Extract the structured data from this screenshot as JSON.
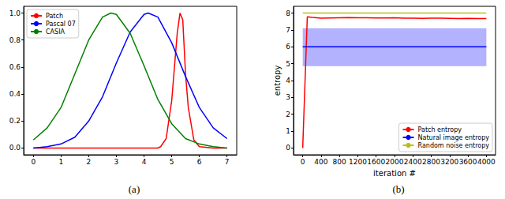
{
  "chart_data": [
    {
      "type": "line",
      "caption": "(a)",
      "xlim": [
        -0.35,
        7.35
      ],
      "xticks": [
        0,
        1,
        2,
        3,
        4,
        5,
        6,
        7
      ],
      "ylim": [
        -0.05,
        1.05
      ],
      "yticks": [
        {
          "value": 0,
          "label": "0.0"
        },
        {
          "value": 0.2,
          "label": "0.2"
        },
        {
          "value": 0.4,
          "label": "0.4"
        },
        {
          "value": 0.6,
          "label": "0.6"
        },
        {
          "value": 0.8,
          "label": "0.8"
        },
        {
          "value": 1,
          "label": "1.0"
        }
      ],
      "grid": false,
      "legend": "upper left",
      "series": [
        {
          "name": "Patch",
          "color": "#ff0000",
          "x": [
            0,
            1,
            2,
            3,
            4,
            4.5,
            4.6,
            4.8,
            5.0,
            5.1,
            5.2,
            5.3,
            5.4,
            5.5,
            5.6,
            5.8,
            6.0,
            6.5,
            7
          ],
          "values": [
            0,
            0,
            0,
            0,
            0,
            0,
            0.01,
            0.07,
            0.35,
            0.6,
            0.85,
            1.0,
            0.95,
            0.55,
            0.3,
            0.06,
            0.01,
            0,
            0
          ]
        },
        {
          "name": "Pascal 07",
          "color": "#0000ff",
          "x": [
            0,
            0.5,
            1,
            1.5,
            2,
            2.5,
            3,
            3.5,
            4,
            4.15,
            4.5,
            5,
            5.5,
            6,
            6.5,
            7
          ],
          "values": [
            0,
            0.01,
            0.03,
            0.08,
            0.2,
            0.38,
            0.63,
            0.86,
            0.99,
            1.0,
            0.97,
            0.78,
            0.53,
            0.3,
            0.15,
            0.07
          ]
        },
        {
          "name": "CASIA",
          "color": "#008000",
          "x": [
            0,
            0.5,
            1,
            1.5,
            2,
            2.5,
            2.8,
            3,
            3.5,
            4,
            4.5,
            5,
            5.5,
            6,
            6.5,
            7
          ],
          "values": [
            0.06,
            0.15,
            0.3,
            0.55,
            0.8,
            0.97,
            1.0,
            0.99,
            0.85,
            0.61,
            0.36,
            0.18,
            0.07,
            0.03,
            0.01,
            0
          ]
        }
      ]
    },
    {
      "type": "line",
      "caption": "(b)",
      "x_label": "iteration #",
      "y_label": "entropy",
      "xlim": [
        -200,
        4200
      ],
      "xticks": [
        0,
        400,
        800,
        1200,
        1600,
        2000,
        2400,
        2800,
        3200,
        3600,
        4000
      ],
      "ylim": [
        -0.4,
        8.4
      ],
      "yticks": [
        0,
        1,
        2,
        3,
        4,
        5,
        6,
        7,
        8
      ],
      "grid": false,
      "legend": "lower right",
      "series": [
        {
          "name": "Patch entropy",
          "color": "#ff0000",
          "x": [
            0,
            100,
            200,
            300,
            400,
            600,
            800,
            1000,
            1200,
            1400,
            1600,
            1800,
            2000,
            2200,
            2400,
            2600,
            2800,
            3000,
            3200,
            3400,
            3600,
            3800,
            4000
          ],
          "values": [
            0,
            7.78,
            7.74,
            7.72,
            7.7,
            7.71,
            7.72,
            7.73,
            7.72,
            7.72,
            7.71,
            7.71,
            7.72,
            7.7,
            7.7,
            7.69,
            7.7,
            7.7,
            7.69,
            7.68,
            7.69,
            7.68,
            7.68
          ]
        },
        {
          "name": "Natural image entropy",
          "color": "#0000ff",
          "x": [
            0,
            4000
          ],
          "values": [
            6,
            6
          ],
          "band": [
            4.85,
            7.1
          ]
        },
        {
          "name": "Random noise entropy",
          "color": "#bcbd22",
          "x": [
            0,
            4000
          ],
          "values": [
            8,
            8
          ]
        }
      ]
    }
  ]
}
